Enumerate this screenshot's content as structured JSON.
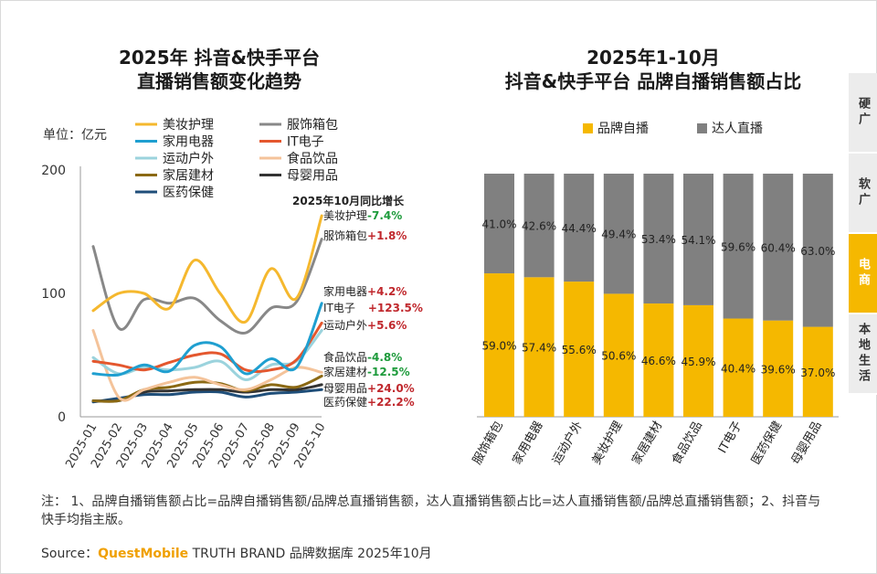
{
  "side_tabs": [
    {
      "label": "硬广",
      "active": false
    },
    {
      "label": "软广",
      "active": false
    },
    {
      "label": "电商",
      "active": true
    },
    {
      "label": "本地生活",
      "active": false
    }
  ],
  "note": "注：    1、品牌自播销售额占比=品牌自播销售额/品牌总直播销售额，达人直播销售额占比=达人直播销售额/品牌总直播销售额；2、抖音与快手均指主版。",
  "source": {
    "prefix": "Source：",
    "brand": "QuestMobile",
    "rest": " TRUTH BRAND 品牌数据库 2025年10月"
  },
  "chart_data": [
    {
      "type": "line",
      "title": "2025年 抖音&快手平台\n直播销售额变化趋势",
      "unit_label": "单位：亿元",
      "ylim": [
        0,
        200
      ],
      "y_ticks": [
        0,
        100,
        200
      ],
      "x": [
        "2025-01",
        "2025-02",
        "2025-03",
        "2025-04",
        "2025-05",
        "2025-06",
        "2025-07",
        "2025-08",
        "2025-09",
        "2025-10"
      ],
      "annotation_title": "2025年10月同比增长",
      "series": [
        {
          "name": "美妆护理",
          "color": "#f5b82e",
          "values": [
            86,
            100,
            100,
            88,
            127,
            100,
            77,
            120,
            96,
            163
          ],
          "growth": "-7.4%",
          "growth_color": "#1e9b3c"
        },
        {
          "name": "服饰箱包",
          "color": "#888888",
          "values": [
            138,
            72,
            95,
            92,
            96,
            78,
            68,
            88,
            93,
            144
          ],
          "growth": "+1.8%",
          "growth_color": "#c0282d"
        },
        {
          "name": "家用电器",
          "color": "#1f9fd0",
          "values": [
            35,
            34,
            42,
            37,
            58,
            57,
            35,
            47,
            40,
            92
          ],
          "growth": "+4.2%",
          "growth_color": "#c0282d"
        },
        {
          "name": "IT电子",
          "color": "#e4572e",
          "values": [
            45,
            42,
            38,
            44,
            50,
            51,
            38,
            38,
            46,
            76
          ],
          "growth": "+123.5%",
          "growth_color": "#c0282d"
        },
        {
          "name": "运动户外",
          "color": "#9bd3dd",
          "values": [
            48,
            35,
            40,
            38,
            40,
            45,
            30,
            42,
            45,
            70
          ],
          "growth": "+5.6%",
          "growth_color": "#c0282d"
        },
        {
          "name": "食品饮品",
          "color": "#f4c39a",
          "values": [
            70,
            16,
            22,
            28,
            32,
            26,
            22,
            30,
            40,
            36
          ],
          "growth": "-4.8%",
          "growth_color": "#1e9b3c"
        },
        {
          "name": "家居建材",
          "color": "#8b6914",
          "values": [
            13,
            13,
            22,
            24,
            28,
            27,
            21,
            26,
            24,
            33
          ],
          "growth": "-12.5%",
          "growth_color": "#1e9b3c"
        },
        {
          "name": "母婴用品",
          "color": "#333333",
          "values": [
            13,
            13,
            20,
            21,
            22,
            22,
            20,
            22,
            22,
            26
          ],
          "growth": "+24.0%",
          "growth_color": "#c0282d"
        },
        {
          "name": "医药保健",
          "color": "#1f4e79",
          "values": [
            12,
            15,
            18,
            18,
            20,
            20,
            16,
            19,
            20,
            22
          ],
          "growth": "+22.2%",
          "growth_color": "#c0282d"
        }
      ]
    },
    {
      "type": "bar",
      "stacked": true,
      "title": "2025年1-10月\n抖音&快手平台 品牌自播销售额占比",
      "ylim": [
        0,
        100
      ],
      "categories": [
        "服饰箱包",
        "家用电器",
        "运动户外",
        "美妆护理",
        "家居建材",
        "食品饮品",
        "IT电子",
        "医药保健",
        "母婴用品"
      ],
      "series": [
        {
          "name": "品牌自播",
          "color": "#f5b800",
          "values": [
            59.0,
            57.4,
            55.6,
            50.6,
            46.6,
            45.9,
            40.4,
            39.6,
            37.0
          ]
        },
        {
          "name": "达人直播",
          "color": "#808080",
          "values": [
            41.0,
            42.6,
            44.4,
            49.4,
            53.4,
            54.1,
            59.6,
            60.4,
            63.0
          ]
        }
      ],
      "legend": "top"
    }
  ]
}
